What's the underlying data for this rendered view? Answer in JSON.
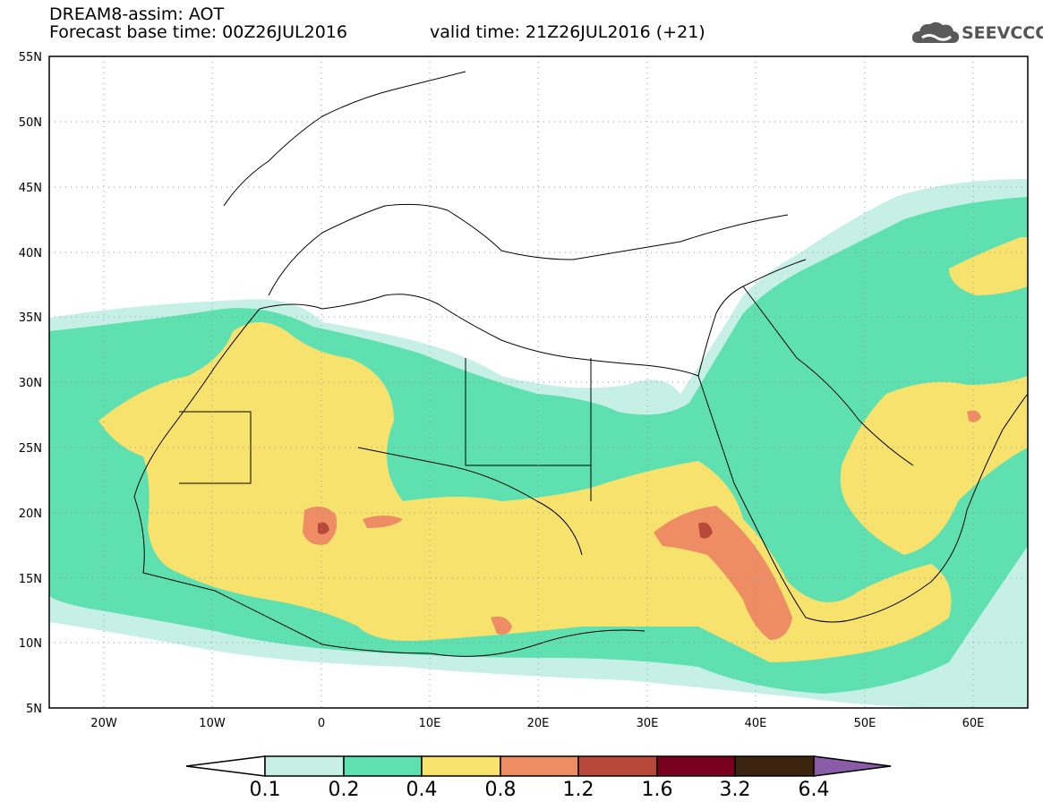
{
  "header": {
    "line1": "DREAM8-assim: AOT",
    "line2_left": "Forecast base time: 00Z26JUL2016",
    "line2_right": "valid time: 21Z26JUL2016 (+21)",
    "logo_text": "SEEVCCC"
  },
  "axes": {
    "lat_labels": [
      "55N",
      "50N",
      "45N",
      "40N",
      "35N",
      "30N",
      "25N",
      "20N",
      "15N",
      "10N",
      "5N"
    ],
    "lon_labels": [
      "20W",
      "10W",
      "0",
      "10E",
      "20E",
      "30E",
      "40E",
      "50E",
      "60E"
    ]
  },
  "colorbar": {
    "labels": [
      "0.1",
      "0.2",
      "0.4",
      "0.8",
      "1.2",
      "1.6",
      "3.2",
      "6.4"
    ],
    "colors": [
      "#ffffff",
      "#c6f0e6",
      "#5ee0b0",
      "#f8e26e",
      "#ee8c64",
      "#b8493a",
      "#7a0020",
      "#3c2410",
      "#8a5ca8"
    ]
  }
}
